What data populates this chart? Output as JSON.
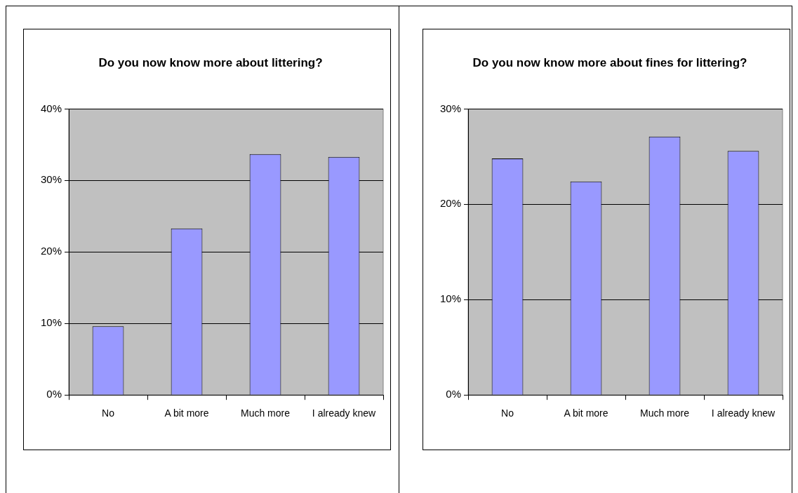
{
  "chart_data": [
    {
      "type": "bar",
      "title": "Do you now know more about littering?",
      "categories": [
        "No",
        "A bit more",
        "Much more",
        "I already knew"
      ],
      "values": [
        9.6,
        23.3,
        33.7,
        33.3
      ],
      "color": "#9999ff",
      "ylim": [
        0,
        40
      ],
      "yticks": [
        {
          "value": 0,
          "label": "0%"
        },
        {
          "value": 10,
          "label": "10%"
        },
        {
          "value": 20,
          "label": "20%"
        },
        {
          "value": 30,
          "label": "30%"
        },
        {
          "value": 40,
          "label": "40%"
        }
      ],
      "grid": "y",
      "legend": false
    },
    {
      "type": "bar",
      "title": "Do you now know more about fines for littering?",
      "categories": [
        "No",
        "A bit more",
        "Much more",
        "I already knew"
      ],
      "values": [
        24.8,
        22.4,
        27.1,
        25.6
      ],
      "color": "#9999ff",
      "ylim": [
        0,
        30
      ],
      "yticks": [
        {
          "value": 0,
          "label": "0%"
        },
        {
          "value": 10,
          "label": "10%"
        },
        {
          "value": 20,
          "label": "20%"
        },
        {
          "value": 30,
          "label": "30%"
        }
      ],
      "grid": "y",
      "legend": false
    }
  ]
}
